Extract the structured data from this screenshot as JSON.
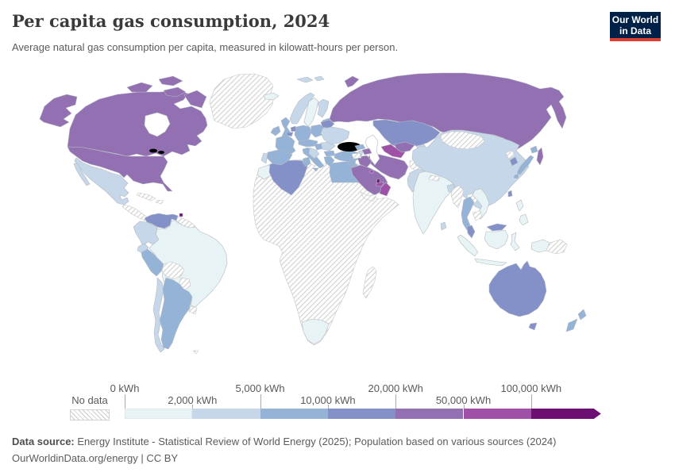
{
  "header": {
    "title": "Per capita gas consumption, 2024",
    "subtitle": "Average natural gas consumption per capita, measured in kilowatt-hours per person.",
    "logo": {
      "line1": "Our World",
      "line2": "in Data",
      "bg": "#002147",
      "accent": "#dc3e32"
    }
  },
  "legend": {
    "no_data_label": "No data",
    "ticks": [
      {
        "label": "0 kWh",
        "pos": 0,
        "row": "top"
      },
      {
        "label": "2,000 kWh",
        "pos": 1,
        "row": "bottom"
      },
      {
        "label": "5,000 kWh",
        "pos": 2,
        "row": "top"
      },
      {
        "label": "10,000 kWh",
        "pos": 3,
        "row": "bottom"
      },
      {
        "label": "20,000 kWh",
        "pos": 4,
        "row": "top"
      },
      {
        "label": "50,000 kWh",
        "pos": 5,
        "row": "bottom"
      },
      {
        "label": "100,000 kWh",
        "pos": 6,
        "row": "top"
      }
    ]
  },
  "chart_data": {
    "type": "choropleth_map",
    "title": "Per capita gas consumption, 2024",
    "unit": "kilowatt-hours per person",
    "legend_position": "bottom",
    "bins": [
      {
        "min": 0,
        "max": 2000,
        "label": "0 – 2,000 kWh",
        "color": "#e8f3f5"
      },
      {
        "min": 2000,
        "max": 5000,
        "label": "2,000 – 5,000 kWh",
        "color": "#c6d7e9"
      },
      {
        "min": 5000,
        "max": 10000,
        "label": "5,000 – 10,000 kWh",
        "color": "#94b3d7"
      },
      {
        "min": 10000,
        "max": 20000,
        "label": "10,000 – 20,000 kWh",
        "color": "#8491c8"
      },
      {
        "min": 20000,
        "max": 50000,
        "label": "20,000 – 50,000 kWh",
        "color": "#9370b2"
      },
      {
        "min": 50000,
        "max": 100000,
        "label": "50,000 – 100,000 kWh",
        "color": "#9e51a7"
      },
      {
        "min": 100000,
        "max": null,
        "label": "> 100,000 kWh",
        "color": "#6d0e72"
      }
    ],
    "no_data": {
      "label": "No data",
      "pattern": "diagonal-hatch",
      "line_color": "#cfcfcf"
    },
    "countries": {
      "canada": 4,
      "united-states": 4,
      "greenland": "no_data",
      "mexico": 1,
      "central-america": "no_data",
      "cuba": "no_data",
      "hispaniola": "no_data",
      "trinidad-and-tobago": 6,
      "venezuela": 3,
      "guyanas": "no_data",
      "colombia": 1,
      "ecuador": 1,
      "peru": 2,
      "brazil": 0,
      "bolivia": "no_data",
      "paraguay": "no_data",
      "uruguay": "no_data",
      "argentina": 2,
      "chile": 1,
      "falklands": "no_data",
      "iceland": 0,
      "ireland": 2,
      "united-kingdom": 2,
      "norway": 1,
      "svalbard": 1,
      "sweden": 0,
      "finland": 1,
      "denmark": 2,
      "baltic-states": 2,
      "netherlands": 3,
      "belgium": 3,
      "germany": 2,
      "poland": 2,
      "central-europe": 2,
      "france": 2,
      "spain": 2,
      "portugal": 1,
      "italy": 2,
      "hungary": 2,
      "western-balkans": 1,
      "romania": 1,
      "bulgaria": 2,
      "greece": 2,
      "belarus": 3,
      "ukraine": 1,
      "turkey": 2,
      "russia": 4,
      "kazakhstan": 3,
      "uzbekistan": 4,
      "turkmenistan": 5,
      "kyrgyzstan": 1,
      "tajikistan": 1,
      "georgia": 2,
      "armenia": 1,
      "azerbaijan": 4,
      "iran": 4,
      "iraq": 4,
      "syria": "no_data",
      "levant": 2,
      "saudi-arabia": 4,
      "yemen": "no_data",
      "oman": 5,
      "united-arab-emirates": 5,
      "qatar": 6,
      "kuwait": 5,
      "africa-nodata-region": "no_data",
      "morocco": 0,
      "algeria": 3,
      "tunisia": 2,
      "egypt": 2,
      "south-africa": 0,
      "madagascar": "no_data",
      "afghanistan": "no_data",
      "pakistan": 1,
      "india": 0,
      "nepal": "no_data",
      "bangladesh": 1,
      "sri-lanka": 1,
      "china": 1,
      "mongolia": "no_data",
      "north-korea": "no_data",
      "south-korea": 3,
      "japan": 2,
      "taiwan": 3,
      "myanmar": "no_data",
      "thailand": 2,
      "laos": "no_data",
      "vietnam": 0,
      "cambodia": "no_data",
      "malaysia": 3,
      "indonesia": 0,
      "philippines": 0,
      "papua-new-guinea": "no_data",
      "australia": 3,
      "new-zealand": 2
    }
  },
  "footer": {
    "source_label": "Data source:",
    "source_text": " Energy Institute - Statistical Review of World Energy (2025); Population based on various sources (2024)",
    "link_line": "OurWorldinData.org/energy | CC BY"
  }
}
